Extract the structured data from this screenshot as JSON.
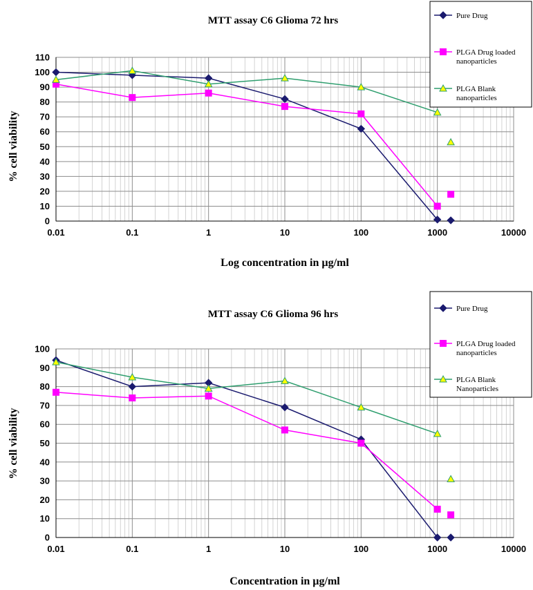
{
  "chart_data": [
    {
      "type": "line",
      "title": "MTT assay C6 Glioma 72 hrs",
      "xlabel": "Log concentration in µg/ml",
      "ylabel": "% cell viability",
      "x_scale": "log",
      "xlim": [
        0.01,
        10000
      ],
      "ylim": [
        0,
        110
      ],
      "x_ticks": [
        0.01,
        0.1,
        1,
        10,
        100,
        1000,
        10000
      ],
      "x_tick_labels": [
        "0.01",
        "0.1",
        "1",
        "10",
        "100",
        "1000",
        "10000"
      ],
      "y_ticks": [
        0,
        10,
        20,
        30,
        40,
        50,
        60,
        70,
        80,
        90,
        100,
        110
      ],
      "grid": true,
      "legend_position": "top-right",
      "series": [
        {
          "name": "Pure Drug",
          "color": "#1a1a6e",
          "marker": "diamond",
          "x": [
            0.01,
            0.1,
            1,
            10,
            100,
            1000,
            1500
          ],
          "y": [
            100,
            98,
            96,
            82,
            62,
            1,
            0.5
          ]
        },
        {
          "name": "PLGA Drug loaded nanoparticles",
          "color": "#ff00ff",
          "marker": "square",
          "x": [
            0.01,
            0.1,
            1,
            10,
            100,
            1000,
            1500
          ],
          "y": [
            92,
            83,
            86,
            77,
            72,
            10,
            18
          ]
        },
        {
          "name": "PLGA Blank nanoparticles",
          "color": "#2e9e6e",
          "marker": "triangle",
          "marker_fill": "#ffff00",
          "x": [
            0.01,
            0.1,
            1,
            10,
            100,
            1000,
            1500
          ],
          "y": [
            95,
            101,
            92,
            96,
            90,
            73,
            53
          ]
        }
      ]
    },
    {
      "type": "line",
      "title": "MTT assay C6 Glioma 96 hrs",
      "xlabel": "Concentration in µg/ml",
      "ylabel": "% cell viability",
      "x_scale": "log",
      "xlim": [
        0.01,
        10000
      ],
      "ylim": [
        0,
        100
      ],
      "x_ticks": [
        0.01,
        0.1,
        1,
        10,
        100,
        1000,
        10000
      ],
      "x_tick_labels": [
        "0.01",
        "0.1",
        "1",
        "10",
        "100",
        "1000",
        "10000"
      ],
      "y_ticks": [
        0,
        10,
        20,
        30,
        40,
        50,
        60,
        70,
        80,
        90,
        100
      ],
      "grid": true,
      "legend_position": "top-right",
      "series": [
        {
          "name": "Pure Drug",
          "color": "#1a1a6e",
          "marker": "diamond",
          "x": [
            0.01,
            0.1,
            1,
            10,
            100,
            1000,
            1500
          ],
          "y": [
            94,
            80,
            82,
            69,
            52,
            0,
            0
          ]
        },
        {
          "name": "PLGA Drug loaded nanoparticles",
          "color": "#ff00ff",
          "marker": "square",
          "x": [
            0.01,
            0.1,
            1,
            10,
            100,
            1000,
            1500
          ],
          "y": [
            77,
            74,
            75,
            57,
            50,
            15,
            12
          ]
        },
        {
          "name": "PLGA Blank Nanoparticles",
          "color": "#2e9e6e",
          "marker": "triangle",
          "marker_fill": "#ffff00",
          "x": [
            0.01,
            0.1,
            1,
            10,
            100,
            1000,
            1500
          ],
          "y": [
            93,
            85,
            79,
            83,
            69,
            55,
            31
          ]
        }
      ]
    }
  ]
}
